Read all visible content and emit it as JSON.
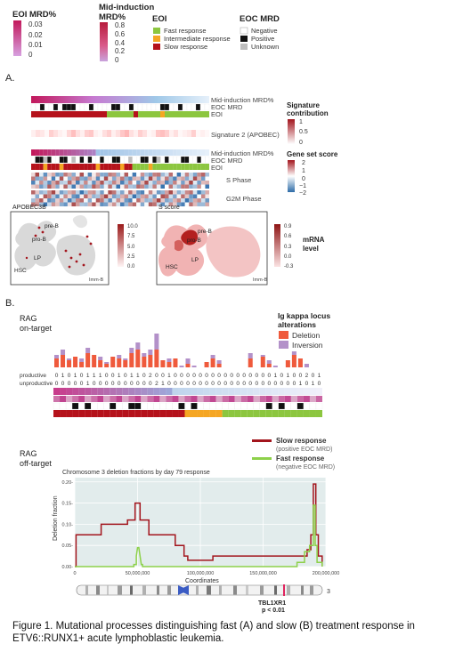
{
  "legends": {
    "eoi_mrd": {
      "title": "EOI MRD%",
      "ticks": [
        "0.03",
        "0.02",
        "0.01",
        "0"
      ]
    },
    "mid_mrd": {
      "title": "Mid-induction MRD%",
      "ticks": [
        "0.8",
        "0.6",
        "0.4",
        "0.2",
        "0"
      ]
    },
    "eoi": {
      "title": "EOI",
      "items": [
        {
          "label": "Fast response",
          "color": "#8cc63f"
        },
        {
          "label": "Intermediate response",
          "color": "#f5a623"
        },
        {
          "label": "Slow response",
          "color": "#b5121b"
        }
      ]
    },
    "eoc_mrd": {
      "title": "EOC MRD",
      "items": [
        {
          "label": "Negative",
          "color": "#ffffff"
        },
        {
          "label": "Positive",
          "color": "#111111"
        },
        {
          "label": "Unknown",
          "color": "#bdbdbd"
        }
      ]
    }
  },
  "panel_a": {
    "label": "A.",
    "row_labels_top": [
      "Mid-induction MRD%",
      "EOC MRD",
      "EOI"
    ],
    "signature_label": "Signature 2 (APOBEC)",
    "row_labels_bottom": [
      "Mid-induction MRD%",
      "EOC MRD",
      "EOI",
      "S Phase",
      "G2M Phase"
    ],
    "sig_legend": {
      "title": "Signature contribution",
      "ticks": [
        "1",
        "0.5",
        "0"
      ]
    },
    "gss_legend": {
      "title": "Gene set score",
      "ticks": [
        "2",
        "1",
        "0",
        "−1",
        "−2"
      ]
    },
    "umap_left": {
      "title": "APOBEC3B",
      "ticks": [
        "10.0",
        "7.5",
        "5.0",
        "2.5",
        "0.0"
      ],
      "labels": [
        "pre-B",
        "pro-B",
        "LP",
        "HSC",
        "Imm-B"
      ]
    },
    "umap_right": {
      "title": "S score",
      "ticks": [
        "0.9",
        "0.6",
        "0.3",
        "0.0",
        "-0.3"
      ],
      "labels": [
        "pre-B",
        "pro-B",
        "LP",
        "HSC",
        "Imm-B"
      ]
    },
    "mrna_label": "mRNA level"
  },
  "panel_b": {
    "label": "B.",
    "on_target": "RAG on-target",
    "off_target": "RAG off-target",
    "ig_legend": {
      "title": "Ig kappa locus alterations",
      "items": [
        {
          "label": "Deletion",
          "color": "#ef5a3c"
        },
        {
          "label": "Inversion",
          "color": "#b391c9"
        }
      ]
    },
    "row_labels": [
      "productive",
      "unproductive"
    ],
    "productive": [
      "0",
      "1",
      "0",
      "1",
      "0",
      "1",
      "1",
      "1",
      "0",
      "0",
      "1",
      "0",
      "1",
      "1",
      "0",
      "2",
      "0",
      "0",
      "1",
      "0",
      "0",
      "0",
      "0",
      "0",
      "0",
      "0",
      "0",
      "0",
      "0",
      "0",
      "0",
      "0",
      "0",
      "0",
      "0",
      "1",
      "0",
      "1",
      "0",
      "0",
      "2",
      "0",
      "1"
    ],
    "unproductive": [
      "0",
      "0",
      "0",
      "0",
      "0",
      "1",
      "0",
      "0",
      "0",
      "0",
      "0",
      "0",
      "0",
      "0",
      "0",
      "0",
      "2",
      "1",
      "0",
      "0",
      "0",
      "0",
      "0",
      "0",
      "0",
      "0",
      "0",
      "0",
      "0",
      "0",
      "0",
      "0",
      "0",
      "0",
      "0",
      "0",
      "0",
      "0",
      "0",
      "1",
      "0",
      "1",
      "0"
    ],
    "line_legend": [
      {
        "label": "Slow response",
        "sub": "(positive EOC MRD)",
        "color": "#a3151d"
      },
      {
        "label": "Fast response",
        "sub": "(negative EOC MRD)",
        "color": "#8dd14a"
      }
    ],
    "gene_label": "TBL1XR1",
    "p_value": "p < 0.01",
    "chrom_number": "3"
  },
  "chart_data": {
    "type": "line",
    "title": "Chromosome 3 deletion fractions by day 79 response",
    "xlabel": "Coordinates",
    "ylabel": "Deletion fraction",
    "xlim": [
      0,
      200000000
    ],
    "ylim": [
      0,
      0.21
    ],
    "xticks": [
      0,
      50000000,
      100000000,
      150000000,
      200000000
    ],
    "xtick_labels": [
      "0",
      "50,000,000",
      "100,000,000",
      "150,000,000",
      "200,000,000"
    ],
    "yticks": [
      0,
      0.05,
      0.1,
      0.15,
      0.2
    ],
    "ytick_labels": [
      "0.00-",
      "0.05-",
      "0.10-",
      "0.15-",
      "0.20-"
    ],
    "grid": true,
    "series": [
      {
        "name": "Slow response",
        "color": "#a3151d",
        "points": [
          [
            0,
            0
          ],
          [
            1000000,
            0
          ],
          [
            1000000,
            0.075
          ],
          [
            21000000,
            0.075
          ],
          [
            21000000,
            0.1
          ],
          [
            42000000,
            0.1
          ],
          [
            42000000,
            0.11
          ],
          [
            48000000,
            0.11
          ],
          [
            48000000,
            0.15
          ],
          [
            52000000,
            0.15
          ],
          [
            52000000,
            0.11
          ],
          [
            59000000,
            0.11
          ],
          [
            59000000,
            0.075
          ],
          [
            80000000,
            0.075
          ],
          [
            80000000,
            0.05
          ],
          [
            87000000,
            0.05
          ],
          [
            87000000,
            0.025
          ],
          [
            90000000,
            0.025
          ],
          [
            90000000,
            0.015
          ],
          [
            110000000,
            0.015
          ],
          [
            110000000,
            0.025
          ],
          [
            185000000,
            0.025
          ],
          [
            185000000,
            0.04
          ],
          [
            188000000,
            0.04
          ],
          [
            188000000,
            0.075
          ],
          [
            190000000,
            0.075
          ],
          [
            190000000,
            0.195
          ],
          [
            192000000,
            0.195
          ],
          [
            192000000,
            0.075
          ],
          [
            194000000,
            0.075
          ],
          [
            194000000,
            0.025
          ],
          [
            197000000,
            0.025
          ],
          [
            197000000,
            0
          ]
        ]
      },
      {
        "name": "Fast response",
        "color": "#8dd14a",
        "points": [
          [
            0,
            0
          ],
          [
            47000000,
            0
          ],
          [
            47000000,
            0.005
          ],
          [
            49000000,
            0.005
          ],
          [
            49000000,
            0.025
          ],
          [
            50000000,
            0.045
          ],
          [
            51000000,
            0.045
          ],
          [
            52000000,
            0.025
          ],
          [
            53000000,
            0.005
          ],
          [
            54000000,
            0.005
          ],
          [
            54000000,
            0
          ],
          [
            177000000,
            0
          ],
          [
            177000000,
            0.01
          ],
          [
            183000000,
            0.01
          ],
          [
            183000000,
            0.035
          ],
          [
            187000000,
            0.035
          ],
          [
            187000000,
            0.05
          ],
          [
            190000000,
            0.05
          ],
          [
            190000000,
            0.145
          ],
          [
            191500000,
            0.145
          ],
          [
            191500000,
            0.05
          ],
          [
            193000000,
            0.05
          ],
          [
            193000000,
            0.01
          ],
          [
            197000000,
            0.01
          ],
          [
            197000000,
            0
          ]
        ]
      }
    ]
  },
  "caption": "Figure 1. Mutational processes distinguishing fast (A) and slow (B) treatment response in ETV6::RUNX1+ acute lymphoblastic leukemia."
}
